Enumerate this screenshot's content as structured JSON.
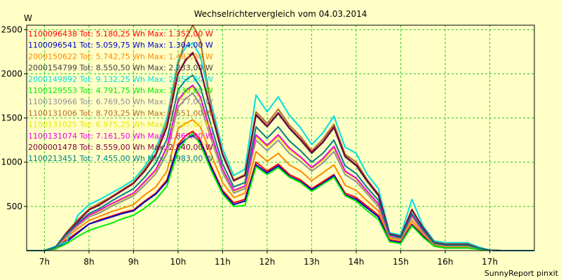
{
  "chart_data": {
    "type": "line",
    "title": "Wechselrichtervergleich vom 04.03.2014",
    "ylabel": "W",
    "footer": "SunnyReport pinxit",
    "ylim": [
      0,
      2550
    ],
    "xlim": [
      6.6,
      18.0
    ],
    "grid": true,
    "legend_position": "top-left",
    "yticks": [
      500,
      1000,
      1500,
      2000,
      2500
    ],
    "xticks": [
      {
        "x": 7.0,
        "label": "7h"
      },
      {
        "x": 8.0,
        "label": "8h"
      },
      {
        "x": 9.0,
        "label": "9h"
      },
      {
        "x": 10.0,
        "label": "10h"
      },
      {
        "x": 11.0,
        "label": "11h"
      },
      {
        "x": 12.0,
        "label": "12h"
      },
      {
        "x": 13.0,
        "label": "13h"
      },
      {
        "x": 14.0,
        "label": "14h"
      },
      {
        "x": 15.0,
        "label": "15h"
      },
      {
        "x": 16.0,
        "label": "16h"
      },
      {
        "x": 17.0,
        "label": "17h"
      }
    ],
    "x": [
      6.6,
      7.0,
      7.25,
      7.5,
      7.75,
      8.0,
      8.25,
      8.5,
      8.75,
      9.0,
      9.25,
      9.5,
      9.75,
      10.0,
      10.17,
      10.33,
      10.5,
      10.75,
      11.0,
      11.25,
      11.5,
      11.75,
      12.0,
      12.25,
      12.5,
      12.75,
      13.0,
      13.25,
      13.5,
      13.75,
      14.0,
      14.25,
      14.5,
      14.75,
      15.0,
      15.25,
      15.5,
      15.75,
      16.0,
      16.25,
      16.5,
      16.75,
      17.0,
      17.25,
      17.5,
      18.0
    ],
    "series": [
      {
        "name": "1100096438 Tot: 5.180,25 Wh Max: 1.352,00 W",
        "color": "#ff0000",
        "values": [
          0,
          0,
          30,
          120,
          210,
          300,
          350,
          390,
          430,
          460,
          560,
          650,
          800,
          1200,
          1300,
          1350,
          1250,
          950,
          680,
          540,
          580,
          1000,
          900,
          980,
          860,
          800,
          700,
          780,
          860,
          650,
          600,
          500,
          400,
          120,
          100,
          300,
          170,
          60,
          40,
          40,
          40,
          20,
          5,
          0,
          0,
          0
        ]
      },
      {
        "name": "1100096541 Tot: 5.059,75 Wh Max: 1.304,00 W",
        "color": "#0000cc",
        "values": [
          0,
          0,
          20,
          100,
          200,
          300,
          340,
          380,
          420,
          450,
          550,
          640,
          780,
          1180,
          1260,
          1300,
          1230,
          930,
          660,
          520,
          560,
          970,
          880,
          960,
          840,
          780,
          690,
          760,
          850,
          630,
          580,
          480,
          380,
          110,
          90,
          290,
          160,
          50,
          30,
          30,
          30,
          15,
          5,
          0,
          0,
          0
        ]
      },
      {
        "name": "2000150622 Tot: 5.742,75 Wh Max: 1.487,00 W",
        "color": "#ff8800",
        "values": [
          0,
          0,
          30,
          150,
          250,
          340,
          390,
          440,
          480,
          520,
          630,
          720,
          900,
          1380,
          1440,
          1480,
          1400,
          1080,
          770,
          600,
          650,
          1120,
          1010,
          1100,
          970,
          900,
          790,
          880,
          970,
          740,
          680,
          560,
          450,
          140,
          120,
          340,
          190,
          70,
          45,
          45,
          45,
          25,
          5,
          0,
          0,
          0
        ]
      },
      {
        "name": "2000154799 Tot: 8.550,50 Wh Max: 2.233,00 W",
        "color": "#404040",
        "values": [
          0,
          0,
          40,
          200,
          330,
          460,
          520,
          600,
          680,
          760,
          900,
          1080,
          1400,
          2000,
          2150,
          2230,
          2050,
          1550,
          1080,
          790,
          850,
          1530,
          1400,
          1550,
          1380,
          1250,
          1100,
          1220,
          1390,
          1060,
          960,
          780,
          620,
          190,
          160,
          460,
          260,
          90,
          70,
          70,
          70,
          30,
          5,
          0,
          0,
          0
        ]
      },
      {
        "name": "2000149892 Tot: 9.132,25 Wh Max: 2.352,00 W",
        "color": "#00e0e0",
        "values": [
          0,
          0,
          50,
          100,
          400,
          520,
          580,
          650,
          720,
          800,
          950,
          1150,
          1500,
          2150,
          2300,
          2350,
          2200,
          1650,
          1150,
          850,
          920,
          1760,
          1570,
          1740,
          1530,
          1390,
          1200,
          1330,
          1520,
          1170,
          1100,
          860,
          700,
          200,
          180,
          580,
          280,
          110,
          90,
          90,
          90,
          40,
          5,
          0,
          0,
          0
        ]
      },
      {
        "name": "1100129553 Tot: 4.791,75 Wh Max: 1.330,00 W",
        "color": "#00ee00",
        "values": [
          0,
          0,
          20,
          80,
          160,
          230,
          270,
          310,
          360,
          400,
          480,
          580,
          730,
          1130,
          1250,
          1330,
          1200,
          900,
          640,
          500,
          510,
          950,
          860,
          940,
          830,
          770,
          670,
          750,
          830,
          620,
          560,
          450,
          350,
          100,
          80,
          280,
          150,
          50,
          30,
          30,
          30,
          15,
          5,
          0,
          0,
          0
        ]
      },
      {
        "name": "1100130966 Tot: 6.769,50 Wh Max: 1.777,00 W",
        "color": "#909090",
        "values": [
          0,
          0,
          35,
          170,
          280,
          380,
          430,
          500,
          560,
          620,
          740,
          870,
          1100,
          1620,
          1720,
          1780,
          1650,
          1250,
          880,
          650,
          700,
          1250,
          1130,
          1250,
          1100,
          1010,
          900,
          990,
          1120,
          860,
          780,
          640,
          500,
          160,
          130,
          380,
          210,
          75,
          55,
          55,
          55,
          25,
          5,
          0,
          0,
          0
        ]
      },
      {
        "name": "1100131006 Tot: 8.703,25 Wh Max: 2.551,00 W",
        "color": "#b07020",
        "values": [
          0,
          0,
          40,
          210,
          350,
          470,
          540,
          610,
          690,
          770,
          920,
          1100,
          1450,
          2100,
          2400,
          2550,
          2380,
          1600,
          1100,
          800,
          860,
          1570,
          1440,
          1600,
          1420,
          1290,
          1130,
          1260,
          1430,
          1090,
          1000,
          800,
          640,
          190,
          160,
          470,
          260,
          95,
          75,
          75,
          75,
          30,
          5,
          0,
          0,
          0
        ]
      },
      {
        "name": "1100131025 Tot: 6.975,25 Wh Max: 1.847,00 W",
        "color": "#e8e800",
        "values": [
          0,
          0,
          35,
          175,
          290,
          395,
          450,
          520,
          580,
          640,
          770,
          900,
          1150,
          1680,
          1790,
          1850,
          1720,
          1290,
          910,
          670,
          720,
          1290,
          1170,
          1290,
          1140,
          1050,
          930,
          1020,
          1160,
          890,
          810,
          660,
          520,
          165,
          135,
          390,
          220,
          78,
          58,
          58,
          58,
          26,
          5,
          0,
          0,
          0
        ]
      },
      {
        "name": "1100131074 Tot: 7.161,50 Wh Max: 1.869,00 W",
        "color": "#ee00ee",
        "values": [
          0,
          0,
          35,
          180,
          295,
          400,
          460,
          530,
          590,
          650,
          780,
          915,
          1170,
          1700,
          1810,
          1870,
          1740,
          1310,
          920,
          680,
          730,
          1310,
          1190,
          1310,
          1160,
          1060,
          940,
          1040,
          1180,
          900,
          820,
          670,
          530,
          170,
          140,
          400,
          225,
          80,
          60,
          60,
          60,
          27,
          5,
          0,
          0,
          0
        ]
      },
      {
        "name": "2000001478 Tot: 8.559,00 Wh Max: 2.240,00 W",
        "color": "#800040",
        "values": [
          0,
          0,
          40,
          200,
          330,
          460,
          520,
          600,
          680,
          760,
          900,
          1080,
          1400,
          2000,
          2160,
          2240,
          2060,
          1560,
          1090,
          790,
          850,
          1540,
          1410,
          1560,
          1390,
          1260,
          1110,
          1230,
          1400,
          1070,
          970,
          790,
          630,
          190,
          160,
          460,
          260,
          90,
          70,
          70,
          70,
          30,
          5,
          0,
          0,
          0
        ]
      },
      {
        "name": "1100213451 Tot: 7.455,00 Wh Max: 1.983,00 W",
        "color": "#008080",
        "values": [
          0,
          0,
          38,
          190,
          310,
          420,
          480,
          560,
          630,
          700,
          830,
          990,
          1260,
          1820,
          1930,
          1983,
          1850,
          1400,
          980,
          720,
          770,
          1400,
          1270,
          1400,
          1240,
          1130,
          1000,
          1100,
          1250,
          960,
          870,
          710,
          570,
          180,
          145,
          420,
          235,
          85,
          62,
          62,
          62,
          28,
          5,
          0,
          0,
          0
        ]
      }
    ]
  }
}
